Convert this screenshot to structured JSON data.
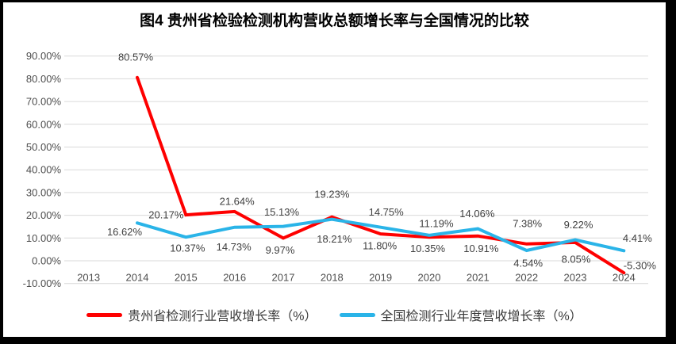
{
  "page": {
    "frame_color": "#000000",
    "canvas_color": "#ffffff",
    "grid_color": "#d9d9d9",
    "text_color": "#3f3f3f"
  },
  "chart_data": {
    "type": "line",
    "title": "图4 贵州省检验检测机构营收总额增长率与全国情况的比较",
    "categories": [
      "2013",
      "2014",
      "2015",
      "2016",
      "2017",
      "2018",
      "2019",
      "2020",
      "2021",
      "2022",
      "2023",
      "2024"
    ],
    "series": [
      {
        "name": "贵州省检测行业营收增长率（%）",
        "color": "#fe0000",
        "values": [
          null,
          80.57,
          20.17,
          21.64,
          9.97,
          19.23,
          11.8,
          10.35,
          10.91,
          7.38,
          8.05,
          -5.3
        ],
        "data_labels": [
          null,
          "80.57%",
          "20.17%",
          "21.64%",
          "9.97%",
          "19.23%",
          "11.80%",
          "10.35%",
          "10.91%",
          "7.38%",
          "8.05%",
          "-5.30%"
        ],
        "label_offsets": [
          null,
          [
            -2,
            -26
          ],
          [
            -25,
            0
          ],
          [
            3,
            -13
          ],
          [
            -4,
            15
          ],
          [
            0,
            -29
          ],
          [
            -1,
            15
          ],
          [
            -2,
            14
          ],
          [
            4,
            16
          ],
          [
            1,
            -26
          ],
          [
            1,
            21
          ],
          [
            20,
            -9
          ]
        ]
      },
      {
        "name": "全国检测行业年度营收增长率（%）",
        "color": "#2ab4e8",
        "values": [
          null,
          16.62,
          10.37,
          14.73,
          15.13,
          18.21,
          14.75,
          11.19,
          14.06,
          4.54,
          9.22,
          4.41
        ],
        "data_labels": [
          null,
          "16.62%",
          "10.37%",
          "14.73%",
          "15.13%",
          "18.21%",
          "14.75%",
          "11.19%",
          "14.06%",
          "4.54%",
          "9.22%",
          "4.41%"
        ],
        "label_offsets": [
          null,
          [
            -16,
            11
          ],
          [
            2,
            14
          ],
          [
            -1,
            25
          ],
          [
            -2,
            -18
          ],
          [
            3,
            25
          ],
          [
            7,
            -19
          ],
          [
            9,
            -15
          ],
          [
            -1,
            -19
          ],
          [
            2,
            16
          ],
          [
            4,
            -19
          ],
          [
            17,
            -16
          ]
        ]
      }
    ],
    "y_axis": {
      "min": -10,
      "max": 90,
      "step": 10,
      "tick_labels": [
        "90.00%",
        "80.00%",
        "70.00%",
        "60.00%",
        "50.00%",
        "40.00%",
        "30.00%",
        "20.00%",
        "10.00%",
        "0.00%",
        "-10.00%"
      ]
    },
    "grid": true,
    "legend_position": "bottom"
  }
}
